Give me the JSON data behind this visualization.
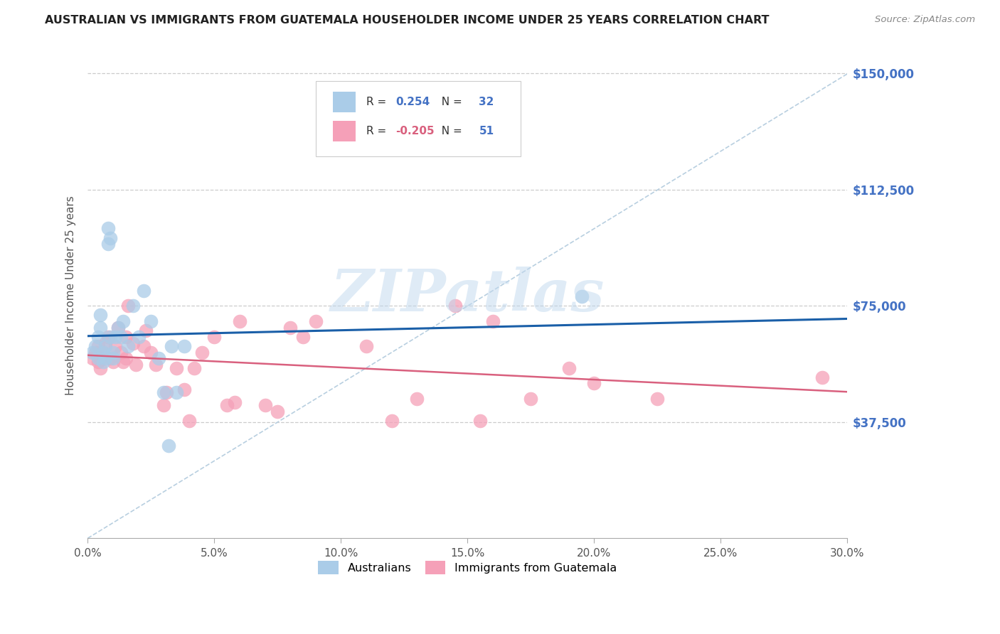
{
  "title": "AUSTRALIAN VS IMMIGRANTS FROM GUATEMALA HOUSEHOLDER INCOME UNDER 25 YEARS CORRELATION CHART",
  "source": "Source: ZipAtlas.com",
  "ylabel_label": "Householder Income Under 25 years",
  "legend1_label": "Australians",
  "legend2_label": "Immigrants from Guatemala",
  "legend_blue_R": "0.254",
  "legend_blue_N": "32",
  "legend_pink_R": "-0.205",
  "legend_pink_N": "51",
  "blue_color": "#aacce8",
  "blue_line_color": "#1a5fa8",
  "pink_color": "#f5a0b8",
  "pink_line_color": "#d9607e",
  "dashed_line_color": "#b8cfe0",
  "grid_color": "#cccccc",
  "xmin": 0.0,
  "xmax": 0.3,
  "ymin": 0,
  "ymax": 157000,
  "xlabel_vals": [
    0.0,
    0.05,
    0.1,
    0.15,
    0.2,
    0.25,
    0.3
  ],
  "xlabel_ticks": [
    "0.0%",
    "5.0%",
    "10.0%",
    "15.0%",
    "20.0%",
    "25.0%",
    "30.0%"
  ],
  "ylabel_vals": [
    37500,
    75000,
    112500,
    150000
  ],
  "ylabel_ticks": [
    "$37,500",
    "$75,000",
    "$112,500",
    "$150,000"
  ],
  "blue_x": [
    0.002,
    0.003,
    0.004,
    0.004,
    0.005,
    0.005,
    0.006,
    0.006,
    0.007,
    0.007,
    0.008,
    0.008,
    0.009,
    0.009,
    0.01,
    0.01,
    0.011,
    0.012,
    0.013,
    0.014,
    0.016,
    0.018,
    0.02,
    0.022,
    0.025,
    0.028,
    0.03,
    0.032,
    0.033,
    0.035,
    0.038,
    0.195
  ],
  "blue_y": [
    60000,
    62000,
    65000,
    58000,
    68000,
    72000,
    60000,
    57000,
    62000,
    58000,
    95000,
    100000,
    97000,
    65000,
    60000,
    58000,
    65000,
    68000,
    65000,
    70000,
    62000,
    75000,
    65000,
    80000,
    70000,
    58000,
    47000,
    30000,
    62000,
    47000,
    62000,
    78000
  ],
  "pink_x": [
    0.002,
    0.003,
    0.004,
    0.004,
    0.005,
    0.005,
    0.006,
    0.007,
    0.008,
    0.009,
    0.01,
    0.011,
    0.012,
    0.013,
    0.014,
    0.015,
    0.015,
    0.016,
    0.018,
    0.019,
    0.022,
    0.023,
    0.025,
    0.027,
    0.03,
    0.031,
    0.035,
    0.038,
    0.04,
    0.042,
    0.045,
    0.05,
    0.055,
    0.058,
    0.06,
    0.07,
    0.075,
    0.08,
    0.085,
    0.09,
    0.11,
    0.12,
    0.13,
    0.145,
    0.155,
    0.16,
    0.175,
    0.19,
    0.2,
    0.225,
    0.29
  ],
  "pink_y": [
    58000,
    60000,
    57000,
    62000,
    55000,
    58000,
    60000,
    63000,
    65000,
    58000,
    57000,
    62000,
    68000,
    60000,
    57000,
    65000,
    58000,
    75000,
    63000,
    56000,
    62000,
    67000,
    60000,
    56000,
    43000,
    47000,
    55000,
    48000,
    38000,
    55000,
    60000,
    65000,
    43000,
    44000,
    70000,
    43000,
    41000,
    68000,
    65000,
    70000,
    62000,
    38000,
    45000,
    75000,
    38000,
    70000,
    45000,
    55000,
    50000,
    45000,
    52000
  ]
}
